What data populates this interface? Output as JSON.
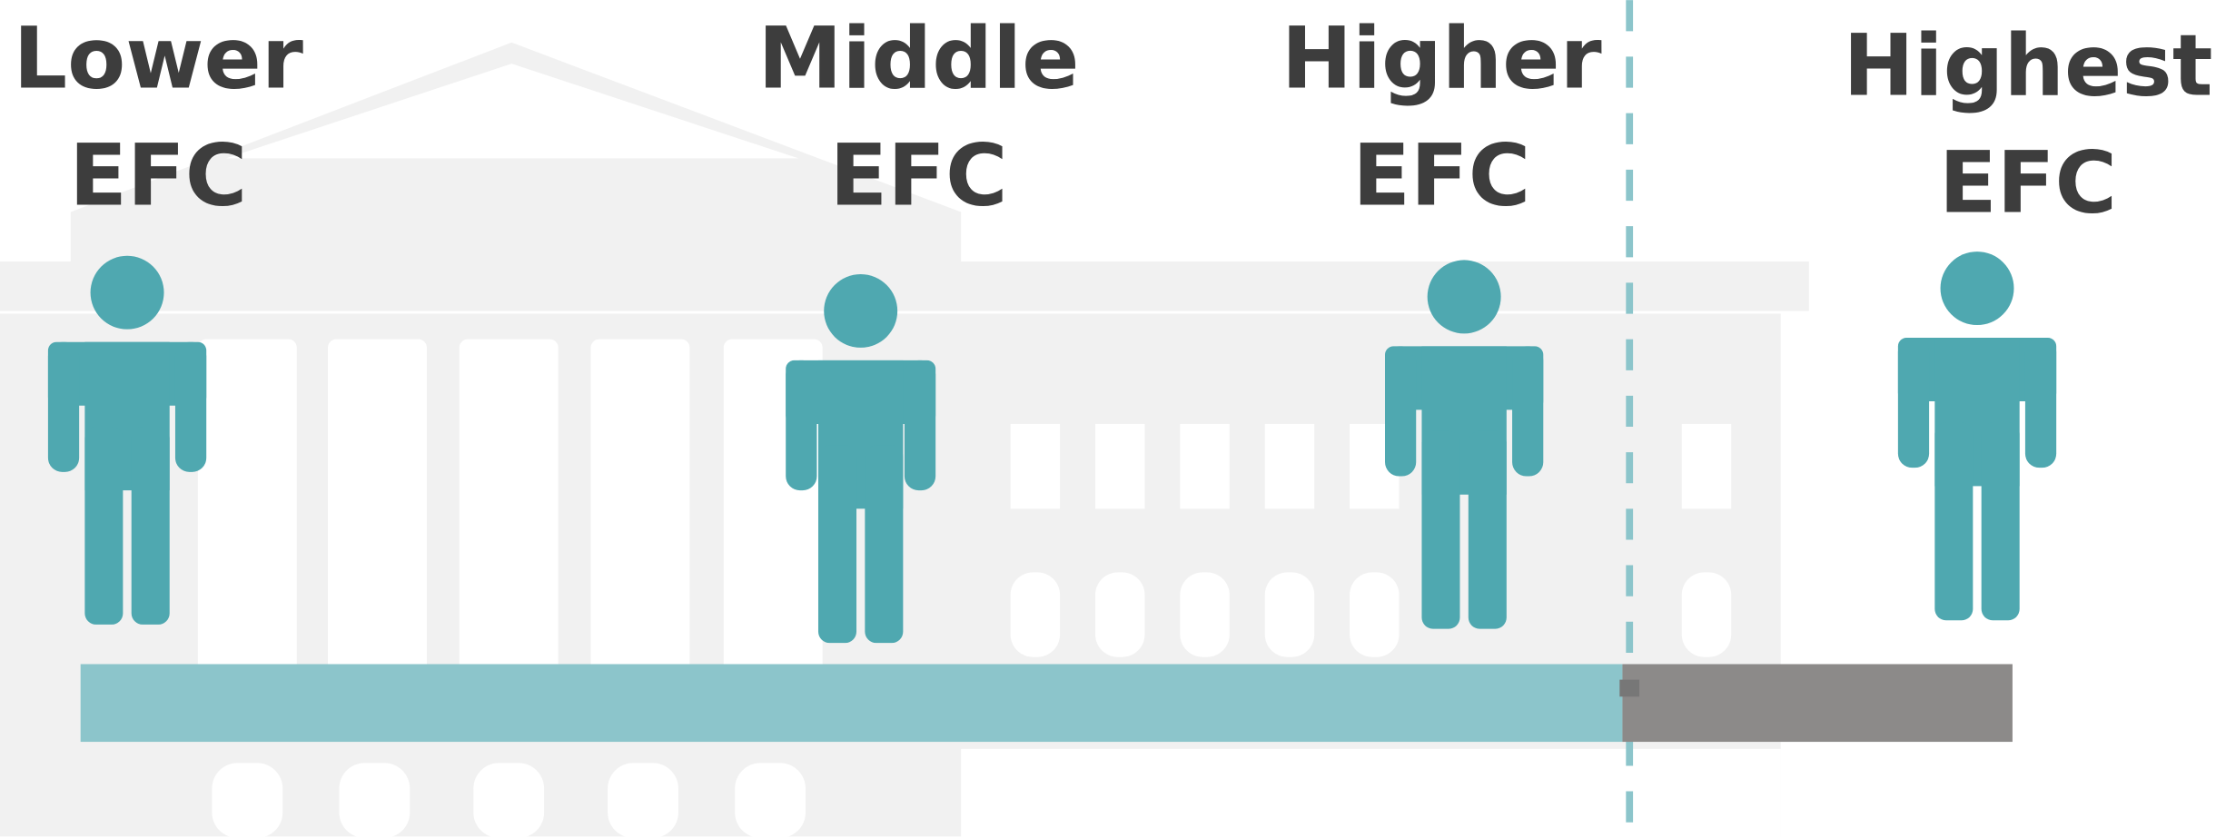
{
  "groups": [
    {
      "line1": "Lower",
      "line2": "EFC"
    },
    {
      "line1": "Middle",
      "line2": "EFC"
    },
    {
      "line1": "Higher",
      "line2": "EFC"
    },
    {
      "line1": "Highest",
      "line2": "EFC"
    }
  ]
}
